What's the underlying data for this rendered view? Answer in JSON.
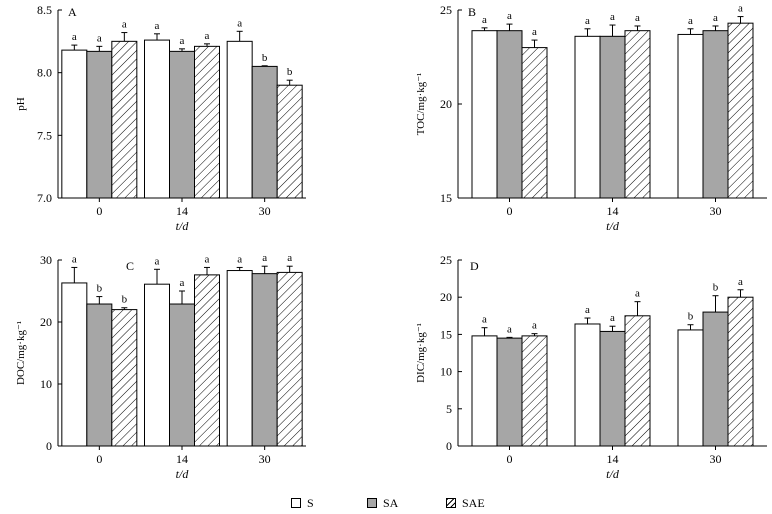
{
  "colors": {
    "S": "#ffffff",
    "SA": "#a6a6a6",
    "SAE": "hatch",
    "axis": "#000000"
  },
  "legend": {
    "items": [
      {
        "key": "S",
        "label": "S"
      },
      {
        "key": "SA",
        "label": "SA"
      },
      {
        "key": "SAE",
        "label": "SAE"
      }
    ]
  },
  "chart_data": [
    {
      "type": "bar",
      "panel_label": "A",
      "categories": [
        "0",
        "14",
        "30"
      ],
      "xlabel": "t/d",
      "ylabel": "pH",
      "ylim": [
        7.0,
        8.5
      ],
      "yticks": [
        "7.0",
        "7.5",
        "8.0",
        "8.5"
      ],
      "series": [
        {
          "name": "S",
          "values": [
            8.18,
            8.26,
            8.25
          ],
          "errors": [
            0.04,
            0.05,
            0.08
          ],
          "letters": [
            "a",
            "a",
            "a"
          ]
        },
        {
          "name": "SA",
          "values": [
            8.17,
            8.17,
            8.05
          ],
          "errors": [
            0.04,
            0.02,
            0.005
          ],
          "letters": [
            "a",
            "a",
            "b"
          ]
        },
        {
          "name": "SAE",
          "values": [
            8.25,
            8.21,
            7.9
          ],
          "errors": [
            0.07,
            0.02,
            0.04
          ],
          "letters": [
            "a",
            "a",
            "b"
          ]
        }
      ]
    },
    {
      "type": "bar",
      "panel_label": "B",
      "categories": [
        "0",
        "14",
        "30"
      ],
      "xlabel": "t/d",
      "ylabel": "TOC/mg·kg⁻¹",
      "ylim": [
        15,
        25
      ],
      "yticks": [
        "15",
        "20",
        "25"
      ],
      "series": [
        {
          "name": "S",
          "values": [
            23.9,
            23.6,
            23.7
          ],
          "errors": [
            0.15,
            0.4,
            0.3
          ],
          "letters": [
            "a",
            "a",
            "a"
          ]
        },
        {
          "name": "SA",
          "values": [
            23.9,
            23.6,
            23.9
          ],
          "errors": [
            0.35,
            0.6,
            0.25
          ],
          "letters": [
            "a",
            "a",
            "a"
          ]
        },
        {
          "name": "SAE",
          "values": [
            23.0,
            23.9,
            24.3
          ],
          "errors": [
            0.4,
            0.25,
            0.35
          ],
          "letters": [
            "a",
            "a",
            "a"
          ]
        }
      ]
    },
    {
      "type": "bar",
      "panel_label": "C",
      "categories": [
        "0",
        "14",
        "30"
      ],
      "xlabel": "",
      "ylabel": "DOC/mg·kg⁻¹",
      "ylim": [
        0,
        30
      ],
      "yticks": [
        "0",
        "10",
        "20",
        "30"
      ],
      "series": [
        {
          "name": "S",
          "values": [
            26.3,
            26.1,
            28.3
          ],
          "errors": [
            2.5,
            2.4,
            0.5
          ],
          "letters": [
            "a",
            "a",
            "a"
          ]
        },
        {
          "name": "SA",
          "values": [
            22.9,
            22.9,
            27.8
          ],
          "errors": [
            1.2,
            2.1,
            1.2
          ],
          "letters": [
            "b",
            "a",
            "a"
          ]
        },
        {
          "name": "SAE",
          "values": [
            22.0,
            27.6,
            28.0
          ],
          "errors": [
            0.3,
            1.2,
            1.0
          ],
          "letters": [
            "b",
            "a",
            "a"
          ]
        }
      ]
    },
    {
      "type": "bar",
      "panel_label": "D",
      "categories": [
        "0",
        "14",
        "30"
      ],
      "xlabel": "t/d",
      "ylabel": "DIC/mg·kg⁻¹",
      "ylim": [
        0,
        25
      ],
      "yticks": [
        "0",
        "5",
        "10",
        "15",
        "20",
        "25"
      ],
      "series": [
        {
          "name": "S",
          "values": [
            14.8,
            16.4,
            15.6
          ],
          "errors": [
            1.1,
            0.8,
            0.7
          ],
          "letters": [
            "a",
            "a",
            "b"
          ]
        },
        {
          "name": "SA",
          "values": [
            14.5,
            15.4,
            18.0
          ],
          "errors": [
            0.1,
            0.7,
            2.2
          ],
          "letters": [
            "a",
            "a",
            "b"
          ]
        },
        {
          "name": "SAE",
          "values": [
            14.8,
            17.5,
            20.0
          ],
          "errors": [
            0.3,
            1.9,
            1.0
          ],
          "letters": [
            "a",
            "a",
            "a"
          ]
        }
      ]
    }
  ]
}
